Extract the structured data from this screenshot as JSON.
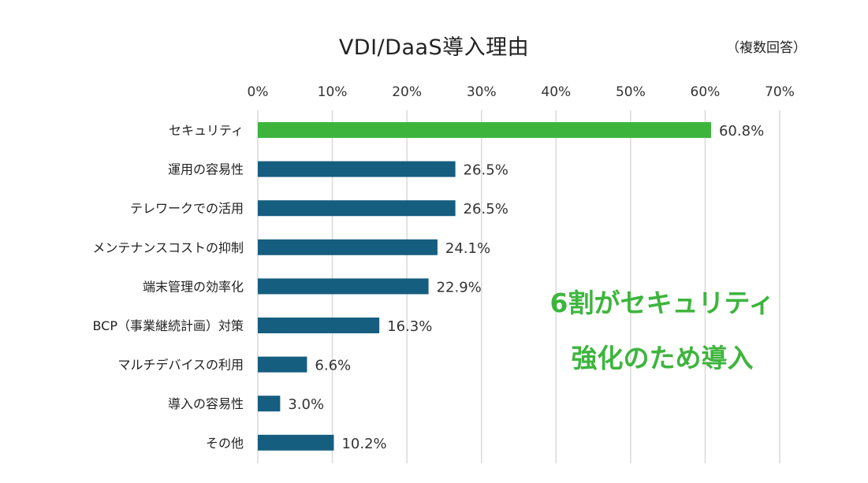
{
  "chart_data": {
    "type": "bar",
    "orientation": "horizontal",
    "title": "VDI/DaaS導入理由",
    "note": "（複数回答）",
    "categories": [
      "セキュリティ",
      "運用の容易性",
      "テレワークでの活用",
      "メンテナンスコストの抑制",
      "端末管理の効率化",
      "BCP（事業継続計画）対策",
      "マルチデバイスの利用",
      "導入の容易性",
      "その他"
    ],
    "values": [
      60.8,
      26.5,
      26.5,
      24.1,
      22.9,
      16.3,
      6.6,
      3.0,
      10.2
    ],
    "value_labels": [
      "60.8%",
      "26.5%",
      "26.5%",
      "24.1%",
      "22.9%",
      "16.3%",
      "6.6%",
      "3.0%",
      "10.2%"
    ],
    "xlim": [
      0,
      70
    ],
    "x_ticks": [
      0,
      10,
      20,
      30,
      40,
      50,
      60,
      70
    ],
    "x_tick_labels": [
      "0%",
      "10%",
      "20%",
      "30%",
      "40%",
      "50%",
      "60%",
      "70%"
    ],
    "x_axis_position": "top",
    "grid": true,
    "highlight_index": 0,
    "colors": {
      "bar": "#165e80",
      "highlight": "#3db53d",
      "grid": "#d9d9d9"
    },
    "annotation": {
      "lines": [
        "6割がセキュリティ",
        "強化のため導入"
      ],
      "color": "#3db53d"
    }
  }
}
